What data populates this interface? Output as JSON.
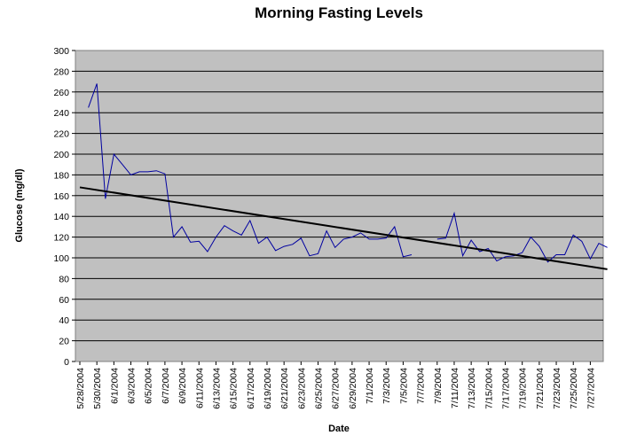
{
  "chart_data": {
    "type": "line",
    "title": "Morning Fasting Levels",
    "xlabel": "Date",
    "ylabel": "Glucose (mg/dl)",
    "ylim": [
      0,
      300
    ],
    "yticks": [
      0,
      20,
      40,
      60,
      80,
      100,
      120,
      140,
      160,
      180,
      200,
      220,
      240,
      260,
      280,
      300
    ],
    "x_start": "5/28/2004",
    "x_end": "7/28/2004",
    "xtick_labels": [
      "5/28/2004",
      "5/30/2004",
      "6/1/2004",
      "6/3/2004",
      "6/5/2004",
      "6/7/2004",
      "6/9/2004",
      "6/11/2004",
      "6/13/2004",
      "6/15/2004",
      "6/17/2004",
      "6/19/2004",
      "6/21/2004",
      "6/23/2004",
      "6/25/2004",
      "6/27/2004",
      "6/29/2004",
      "7/1/2004",
      "7/3/2004",
      "7/5/2004",
      "7/7/2004",
      "7/9/2004",
      "7/11/2004",
      "7/13/2004",
      "7/15/2004",
      "7/17/2004",
      "7/19/2004",
      "7/21/2004",
      "7/23/2004",
      "7/25/2004",
      "7/27/2004"
    ],
    "grid": "horizontal",
    "plot_background": "#C0C0C0",
    "series": [
      {
        "color": "#0000A0",
        "points": [
          [
            "5/29/2004",
            245
          ],
          [
            "5/30/2004",
            268
          ],
          [
            "5/31/2004",
            157
          ],
          [
            "6/1/2004",
            200
          ],
          [
            "6/2/2004",
            190
          ],
          [
            "6/3/2004",
            180
          ],
          [
            "6/4/2004",
            183
          ],
          [
            "6/5/2004",
            183
          ],
          [
            "6/6/2004",
            184
          ],
          [
            "6/7/2004",
            181
          ],
          [
            "6/8/2004",
            120
          ],
          [
            "6/9/2004",
            130
          ],
          [
            "6/10/2004",
            115
          ],
          [
            "6/11/2004",
            116
          ],
          [
            "6/12/2004",
            106
          ],
          [
            "6/13/2004",
            120
          ],
          [
            "6/14/2004",
            131
          ],
          [
            "6/15/2004",
            126
          ],
          [
            "6/16/2004",
            122
          ],
          [
            "6/17/2004",
            136
          ],
          [
            "6/18/2004",
            114
          ],
          [
            "6/19/2004",
            120
          ],
          [
            "6/20/2004",
            107
          ],
          [
            "6/21/2004",
            111
          ],
          [
            "6/22/2004",
            113
          ],
          [
            "6/23/2004",
            119
          ],
          [
            "6/24/2004",
            102
          ],
          [
            "6/25/2004",
            104
          ],
          [
            "6/26/2004",
            126
          ],
          [
            "6/27/2004",
            110
          ],
          [
            "6/28/2004",
            118
          ],
          [
            "6/29/2004",
            120
          ],
          [
            "6/30/2004",
            124
          ],
          [
            "7/1/2004",
            118
          ],
          [
            "7/2/2004",
            118
          ],
          [
            "7/3/2004",
            119
          ],
          [
            "7/4/2004",
            130
          ],
          [
            "7/5/2004",
            101
          ],
          [
            "7/6/2004",
            103
          ],
          null,
          [
            "7/9/2004",
            118
          ],
          [
            "7/10/2004",
            119
          ],
          [
            "7/11/2004",
            143
          ],
          [
            "7/12/2004",
            102
          ],
          [
            "7/13/2004",
            117
          ],
          [
            "7/14/2004",
            106
          ],
          [
            "7/15/2004",
            109
          ],
          [
            "7/16/2004",
            97
          ],
          [
            "7/17/2004",
            101
          ],
          [
            "7/18/2004",
            102
          ],
          [
            "7/19/2004",
            105
          ],
          [
            "7/20/2004",
            120
          ],
          [
            "7/21/2004",
            111
          ],
          [
            "7/22/2004",
            96
          ],
          [
            "7/23/2004",
            103
          ],
          [
            "7/24/2004",
            103
          ],
          [
            "7/25/2004",
            122
          ],
          [
            "7/26/2004",
            116
          ],
          [
            "7/27/2004",
            99
          ],
          [
            "7/28/2004",
            114
          ],
          [
            "7/29/2004",
            110
          ]
        ]
      }
    ],
    "trendline": {
      "type": "linear",
      "color": "#000000",
      "start": [
        "5/28/2004",
        168
      ],
      "end": [
        "7/29/2004",
        89
      ]
    }
  }
}
